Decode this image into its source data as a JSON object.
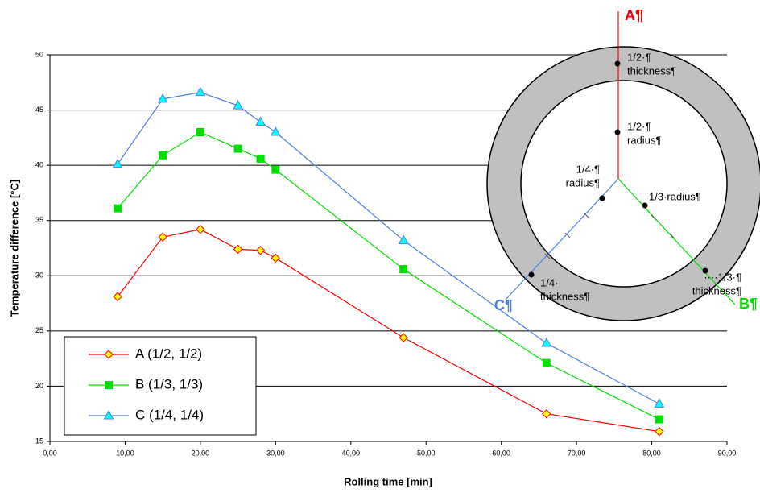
{
  "chart_data": {
    "type": "line",
    "xlabel": "Rolling time [min]",
    "ylabel": "Temperature difference [°C]",
    "xlim": [
      0,
      90
    ],
    "xticks": [
      {
        "value": 0,
        "label": "0,00"
      },
      {
        "value": 10,
        "label": "10,00"
      },
      {
        "value": 20,
        "label": "20,00"
      },
      {
        "value": 30,
        "label": "30,00"
      },
      {
        "value": 40,
        "label": "40,00"
      },
      {
        "value": 50,
        "label": "50,00"
      },
      {
        "value": 60,
        "label": "60,00"
      },
      {
        "value": 70,
        "label": "70,00"
      },
      {
        "value": 80,
        "label": "80,00"
      },
      {
        "value": 90,
        "label": "90,00"
      }
    ],
    "ylim": [
      15,
      50
    ],
    "yticks": [
      15,
      20,
      25,
      30,
      35,
      40,
      45,
      50
    ],
    "grid": true,
    "legend": "lower left",
    "x": [
      9,
      15,
      20,
      25,
      28,
      30,
      47,
      66,
      81
    ],
    "series": [
      {
        "name": "A (1/2, 1/2)",
        "color": "#ff0000",
        "marker": "diamond",
        "marker_fill": "#ffff00",
        "values": [
          28.1,
          33.5,
          34.2,
          32.4,
          32.3,
          31.6,
          24.4,
          17.5,
          15.9
        ]
      },
      {
        "name": "B (1/3, 1/3)",
        "color": "#00e000",
        "marker": "square",
        "marker_fill": "#00e000",
        "values": [
          36.1,
          40.9,
          43.0,
          41.5,
          40.6,
          39.6,
          30.6,
          22.1,
          17.0
        ]
      },
      {
        "name": "C (1/4, 1/4)",
        "color": "#4f81e6",
        "marker": "triangle",
        "marker_fill": "#00ffff",
        "values": [
          40.1,
          46.0,
          46.6,
          45.4,
          43.9,
          43.0,
          33.2,
          23.9,
          18.4
        ]
      }
    ]
  },
  "diagram": {
    "line_labels": [
      "A¶",
      "B¶",
      "C¶"
    ],
    "point_labels": [
      [
        "1/2·¶",
        "thickness¶"
      ],
      [
        "1/2·¶",
        "radius¶"
      ],
      [
        "1/4·¶",
        "radius¶"
      ],
      [
        "1/3·radius¶"
      ],
      [
        "1/4·",
        "thickness¶"
      ],
      [
        "····1/3·¶",
        "thickness¶"
      ]
    ]
  }
}
